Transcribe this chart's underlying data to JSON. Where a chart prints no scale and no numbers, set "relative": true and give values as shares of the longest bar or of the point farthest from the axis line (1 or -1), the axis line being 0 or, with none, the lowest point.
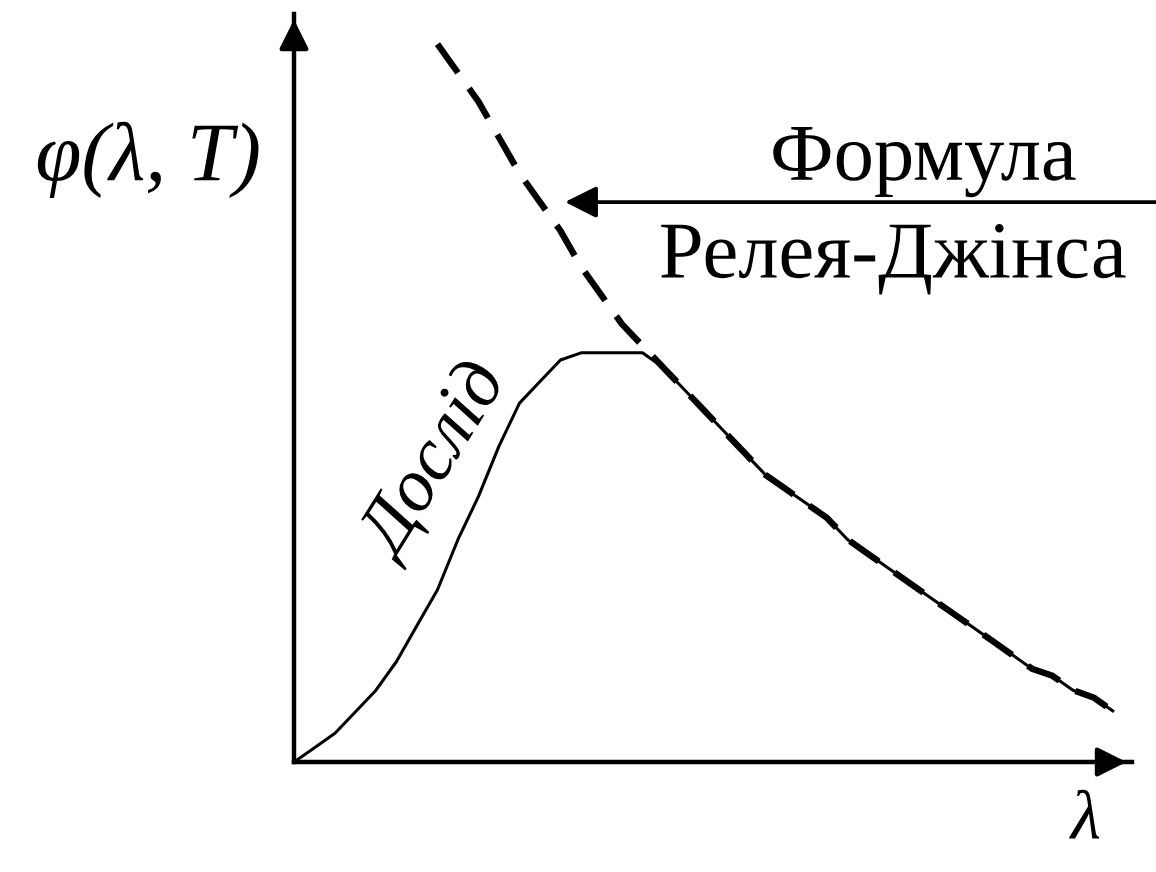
{
  "chart_data": {
    "type": "line",
    "relative": true,
    "ylabel": "φ(λ, T)",
    "xlabel": "λ",
    "categories": [
      null,
      null,
      null,
      null,
      null,
      null,
      null,
      null,
      null,
      null,
      null,
      null,
      null,
      null,
      null,
      null,
      null,
      null,
      null,
      null,
      null,
      null,
      null,
      null,
      null,
      null,
      null,
      null,
      null,
      null,
      null,
      null,
      null,
      null,
      null,
      null,
      null,
      null,
      null,
      null,
      null
    ],
    "series": [
      {
        "name": "Дослід",
        "color": "#000000",
        "line_style": "solid",
        "values": [
          0,
          0.02,
          0.04,
          0.07,
          0.1,
          0.14,
          0.19,
          0.24,
          0.31,
          0.37,
          0.44,
          0.5,
          0.53,
          0.56,
          0.57,
          0.57,
          0.57,
          0.57,
          0.55,
          0.52,
          0.49,
          0.46,
          0.43,
          0.4,
          0.38,
          0.36,
          0.34,
          0.31,
          0.29,
          0.27,
          0.25,
          0.23,
          0.21,
          0.19,
          0.17,
          0.15,
          0.13,
          0.12,
          0.1,
          0.09,
          0.07
        ]
      },
      {
        "name": "Формула Релея-Джінса",
        "color": "#000000",
        "line_style": "dashed",
        "values": [
          null,
          null,
          null,
          null,
          null,
          null,
          null,
          1.0,
          0.96,
          0.92,
          0.87,
          0.82,
          0.78,
          0.74,
          0.69,
          0.65,
          0.61,
          0.58,
          0.55,
          0.52,
          0.49,
          0.46,
          0.43,
          0.4,
          0.38,
          0.36,
          0.34,
          0.31,
          0.29,
          0.27,
          0.25,
          0.23,
          0.21,
          0.19,
          0.17,
          0.15,
          0.13,
          0.12,
          0.1,
          0.09,
          0.07
        ]
      }
    ]
  }
}
